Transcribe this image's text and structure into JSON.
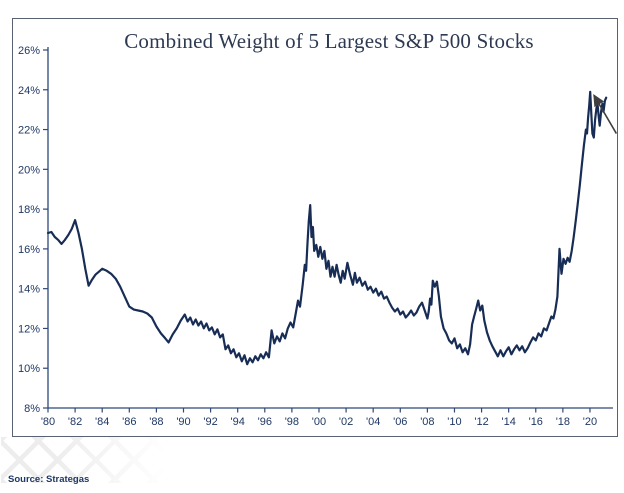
{
  "page": {
    "source_label": "Source: Strategas"
  },
  "chart_data": {
    "type": "line",
    "title": "Combined Weight of 5 Largest S&P 500 Stocks",
    "xlabel": "",
    "ylabel": "",
    "grid": false,
    "legend": "none",
    "ylim": [
      8,
      26
    ],
    "xlim": [
      1980,
      2021.7
    ],
    "y_tick_values": [
      8,
      10,
      12,
      14,
      16,
      18,
      20,
      22,
      24,
      26
    ],
    "y_tick_labels": [
      "8%",
      "10%",
      "12%",
      "14%",
      "16%",
      "18%",
      "20%",
      "22%",
      "24%",
      "26%"
    ],
    "x_tick_years": [
      1980,
      1982,
      1984,
      1986,
      1988,
      1990,
      1992,
      1994,
      1996,
      1998,
      2000,
      2002,
      2004,
      2006,
      2008,
      2010,
      2012,
      2014,
      2016,
      2018,
      2020
    ],
    "x_tick_labels": [
      "'80",
      "'82",
      "'84",
      "'86",
      "'88",
      "'90",
      "'92",
      "'94",
      "'96",
      "'98",
      "'00",
      "'02",
      "'04",
      "'06",
      "'08",
      "'10",
      "'12",
      "'14",
      "'16",
      "'18",
      "'20"
    ],
    "colors": {
      "line": "#182d55",
      "axis": "#2e4878",
      "tick_text": "#1f3864",
      "title_text": "#2e3a52",
      "frame_border": "#596273",
      "arrow": "#3f3f3f",
      "watermark": "#ededed"
    },
    "annotations": [
      {
        "type": "arrow",
        "tail": [
          2021.95,
          21.8
        ],
        "tip": [
          2020.3,
          23.72
        ]
      }
    ],
    "series": [
      {
        "name": "Combined weight of 5 largest S&P 500 stocks (%)",
        "points": [
          [
            1980.0,
            16.8
          ],
          [
            1980.25,
            16.85
          ],
          [
            1980.5,
            16.6
          ],
          [
            1980.75,
            16.45
          ],
          [
            1981.0,
            16.25
          ],
          [
            1981.25,
            16.45
          ],
          [
            1981.5,
            16.7
          ],
          [
            1981.75,
            17.0
          ],
          [
            1982.0,
            17.45
          ],
          [
            1982.25,
            16.8
          ],
          [
            1982.5,
            16.0
          ],
          [
            1982.75,
            15.0
          ],
          [
            1983.0,
            14.15
          ],
          [
            1983.25,
            14.45
          ],
          [
            1983.5,
            14.7
          ],
          [
            1983.75,
            14.85
          ],
          [
            1984.0,
            15.0
          ],
          [
            1984.33,
            14.9
          ],
          [
            1984.66,
            14.75
          ],
          [
            1985.0,
            14.5
          ],
          [
            1985.33,
            14.1
          ],
          [
            1985.66,
            13.6
          ],
          [
            1986.0,
            13.1
          ],
          [
            1986.33,
            12.95
          ],
          [
            1986.66,
            12.9
          ],
          [
            1987.0,
            12.85
          ],
          [
            1987.33,
            12.75
          ],
          [
            1987.66,
            12.55
          ],
          [
            1988.0,
            12.1
          ],
          [
            1988.33,
            11.75
          ],
          [
            1988.66,
            11.5
          ],
          [
            1988.9,
            11.3
          ],
          [
            1989.2,
            11.7
          ],
          [
            1989.5,
            12.0
          ],
          [
            1989.8,
            12.4
          ],
          [
            1990.1,
            12.7
          ],
          [
            1990.3,
            12.35
          ],
          [
            1990.5,
            12.55
          ],
          [
            1990.7,
            12.2
          ],
          [
            1990.9,
            12.45
          ],
          [
            1991.1,
            12.15
          ],
          [
            1991.3,
            12.35
          ],
          [
            1991.5,
            12.0
          ],
          [
            1991.7,
            12.25
          ],
          [
            1991.9,
            11.9
          ],
          [
            1992.1,
            12.05
          ],
          [
            1992.3,
            11.7
          ],
          [
            1992.5,
            11.95
          ],
          [
            1992.7,
            11.55
          ],
          [
            1992.9,
            11.7
          ],
          [
            1993.1,
            10.95
          ],
          [
            1993.3,
            11.15
          ],
          [
            1993.5,
            10.75
          ],
          [
            1993.7,
            10.95
          ],
          [
            1993.9,
            10.55
          ],
          [
            1994.1,
            10.75
          ],
          [
            1994.3,
            10.35
          ],
          [
            1994.5,
            10.65
          ],
          [
            1994.7,
            10.2
          ],
          [
            1994.9,
            10.5
          ],
          [
            1995.1,
            10.3
          ],
          [
            1995.3,
            10.6
          ],
          [
            1995.5,
            10.4
          ],
          [
            1995.7,
            10.7
          ],
          [
            1995.9,
            10.5
          ],
          [
            1996.1,
            10.8
          ],
          [
            1996.3,
            10.55
          ],
          [
            1996.5,
            11.9
          ],
          [
            1996.7,
            11.25
          ],
          [
            1996.9,
            11.6
          ],
          [
            1997.1,
            11.35
          ],
          [
            1997.3,
            11.75
          ],
          [
            1997.5,
            11.5
          ],
          [
            1997.7,
            12.0
          ],
          [
            1997.9,
            12.3
          ],
          [
            1998.1,
            12.05
          ],
          [
            1998.3,
            12.8
          ],
          [
            1998.45,
            13.4
          ],
          [
            1998.6,
            13.1
          ],
          [
            1998.8,
            14.2
          ],
          [
            1998.95,
            15.2
          ],
          [
            1999.05,
            14.9
          ],
          [
            1999.15,
            16.3
          ],
          [
            1999.25,
            17.4
          ],
          [
            1999.35,
            18.2
          ],
          [
            1999.45,
            16.6
          ],
          [
            1999.55,
            17.1
          ],
          [
            1999.65,
            15.9
          ],
          [
            1999.8,
            16.2
          ],
          [
            1999.95,
            15.6
          ],
          [
            2000.1,
            16.1
          ],
          [
            2000.25,
            15.5
          ],
          [
            2000.4,
            15.9
          ],
          [
            2000.55,
            15.0
          ],
          [
            2000.7,
            15.4
          ],
          [
            2000.85,
            14.6
          ],
          [
            2001.0,
            15.1
          ],
          [
            2001.15,
            14.6
          ],
          [
            2001.3,
            15.2
          ],
          [
            2001.45,
            14.7
          ],
          [
            2001.6,
            14.3
          ],
          [
            2001.75,
            14.9
          ],
          [
            2001.9,
            14.5
          ],
          [
            2002.1,
            15.3
          ],
          [
            2002.3,
            14.7
          ],
          [
            2002.5,
            14.2
          ],
          [
            2002.65,
            14.8
          ],
          [
            2002.8,
            14.3
          ],
          [
            2003.0,
            14.55
          ],
          [
            2003.2,
            14.15
          ],
          [
            2003.4,
            14.35
          ],
          [
            2003.6,
            13.95
          ],
          [
            2003.8,
            14.1
          ],
          [
            2004.0,
            13.8
          ],
          [
            2004.2,
            14.0
          ],
          [
            2004.4,
            13.65
          ],
          [
            2004.6,
            13.85
          ],
          [
            2004.8,
            13.5
          ],
          [
            2005.0,
            13.6
          ],
          [
            2005.2,
            13.3
          ],
          [
            2005.4,
            13.05
          ],
          [
            2005.6,
            12.85
          ],
          [
            2005.8,
            13.0
          ],
          [
            2006.0,
            12.7
          ],
          [
            2006.2,
            12.85
          ],
          [
            2006.4,
            12.55
          ],
          [
            2006.6,
            12.7
          ],
          [
            2006.8,
            12.9
          ],
          [
            2007.0,
            12.65
          ],
          [
            2007.2,
            12.8
          ],
          [
            2007.4,
            13.1
          ],
          [
            2007.6,
            13.3
          ],
          [
            2007.8,
            12.9
          ],
          [
            2008.0,
            12.5
          ],
          [
            2008.1,
            12.85
          ],
          [
            2008.2,
            13.5
          ],
          [
            2008.3,
            13.2
          ],
          [
            2008.4,
            14.4
          ],
          [
            2008.55,
            14.1
          ],
          [
            2008.7,
            14.35
          ],
          [
            2008.85,
            13.6
          ],
          [
            2009.0,
            12.6
          ],
          [
            2009.2,
            12.0
          ],
          [
            2009.4,
            11.75
          ],
          [
            2009.6,
            11.4
          ],
          [
            2009.8,
            11.25
          ],
          [
            2010.0,
            11.5
          ],
          [
            2010.2,
            11.0
          ],
          [
            2010.4,
            11.2
          ],
          [
            2010.6,
            10.8
          ],
          [
            2010.8,
            11.0
          ],
          [
            2011.0,
            10.7
          ],
          [
            2011.15,
            11.2
          ],
          [
            2011.3,
            12.2
          ],
          [
            2011.45,
            12.6
          ],
          [
            2011.6,
            13.0
          ],
          [
            2011.75,
            13.4
          ],
          [
            2011.9,
            12.9
          ],
          [
            2012.05,
            13.15
          ],
          [
            2012.2,
            12.4
          ],
          [
            2012.4,
            11.8
          ],
          [
            2012.6,
            11.4
          ],
          [
            2012.8,
            11.1
          ],
          [
            2013.0,
            10.85
          ],
          [
            2013.2,
            10.6
          ],
          [
            2013.4,
            10.9
          ],
          [
            2013.6,
            10.6
          ],
          [
            2013.8,
            10.85
          ],
          [
            2014.0,
            11.05
          ],
          [
            2014.2,
            10.7
          ],
          [
            2014.4,
            10.95
          ],
          [
            2014.6,
            11.15
          ],
          [
            2014.8,
            10.9
          ],
          [
            2015.0,
            11.1
          ],
          [
            2015.2,
            10.8
          ],
          [
            2015.4,
            11.0
          ],
          [
            2015.6,
            11.3
          ],
          [
            2015.8,
            11.55
          ],
          [
            2016.0,
            11.4
          ],
          [
            2016.2,
            11.75
          ],
          [
            2016.4,
            11.6
          ],
          [
            2016.6,
            12.0
          ],
          [
            2016.8,
            11.9
          ],
          [
            2017.0,
            12.3
          ],
          [
            2017.15,
            12.6
          ],
          [
            2017.3,
            12.5
          ],
          [
            2017.45,
            12.95
          ],
          [
            2017.6,
            13.6
          ],
          [
            2017.75,
            16.0
          ],
          [
            2017.9,
            14.75
          ],
          [
            2018.05,
            15.5
          ],
          [
            2018.2,
            15.25
          ],
          [
            2018.35,
            15.55
          ],
          [
            2018.5,
            15.35
          ],
          [
            2018.65,
            15.9
          ],
          [
            2018.8,
            16.6
          ],
          [
            2018.95,
            17.4
          ],
          [
            2019.1,
            18.3
          ],
          [
            2019.25,
            19.2
          ],
          [
            2019.4,
            20.2
          ],
          [
            2019.55,
            21.2
          ],
          [
            2019.7,
            22.0
          ],
          [
            2019.78,
            21.8
          ],
          [
            2019.86,
            22.6
          ],
          [
            2019.94,
            23.2
          ],
          [
            2020.02,
            23.9
          ],
          [
            2020.1,
            22.8
          ],
          [
            2020.18,
            21.8
          ],
          [
            2020.28,
            21.6
          ],
          [
            2020.38,
            22.5
          ],
          [
            2020.48,
            23.1
          ],
          [
            2020.56,
            23.25
          ],
          [
            2020.64,
            22.7
          ],
          [
            2020.72,
            22.2
          ],
          [
            2020.82,
            22.9
          ],
          [
            2020.92,
            23.3
          ],
          [
            2021.0,
            22.9
          ],
          [
            2021.1,
            23.45
          ],
          [
            2021.2,
            23.6
          ]
        ]
      }
    ]
  }
}
